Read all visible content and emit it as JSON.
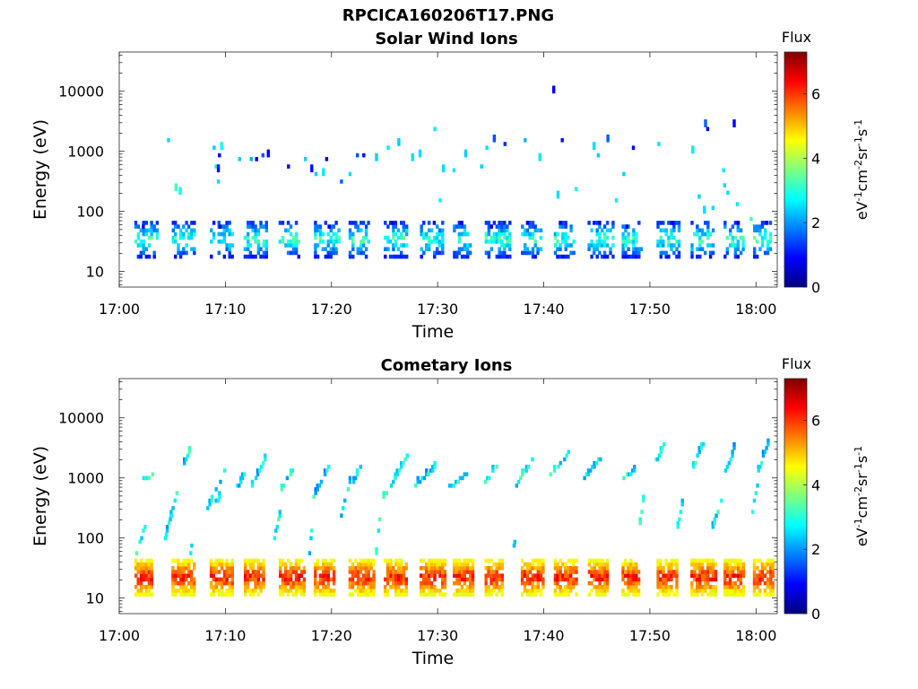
{
  "figure_title": "RPCICA160206T17.PNG",
  "colors": {
    "colormap": [
      "#00007f",
      "#0000ff",
      "#007fff",
      "#00ffff",
      "#7fff7f",
      "#ffff00",
      "#ff7f00",
      "#ff0000",
      "#7f0000"
    ]
  },
  "chart_data": [
    {
      "type": "heatmap",
      "title": "Solar Wind Ions",
      "xlabel": "Time",
      "ylabel": "Energy (eV)",
      "x_ticks": [
        "17:00",
        "17:10",
        "17:20",
        "17:30",
        "17:40",
        "17:50",
        "18:00"
      ],
      "x_range_minutes": [
        0,
        62
      ],
      "y_scale": "log",
      "y_range": [
        5.5,
        45000
      ],
      "y_ticks": [
        "10",
        "100",
        "1000",
        "10000"
      ],
      "y_tick_values": [
        10,
        100,
        1000,
        10000
      ],
      "colorbar": {
        "title": "Flux",
        "label": "eV-1cm-2sr-1s-1",
        "range": [
          0,
          7.3
        ],
        "ticks": [
          "0",
          "2",
          "4",
          "6"
        ],
        "tick_values": [
          0,
          2,
          4,
          6
        ]
      },
      "pulses_minutes": [
        2.3,
        5.8,
        9.4,
        12.6,
        15.9,
        19.2,
        22.5,
        25.8,
        29.2,
        32.3,
        35.3,
        38.7,
        41.8,
        45.0,
        48.2,
        51.5,
        54.7,
        57.8,
        60.6
      ],
      "low_band": {
        "energy_range": [
          17,
          65
        ],
        "flux_range": [
          0.4,
          3.8
        ]
      },
      "high_points": [
        [
          4.5,
          1450,
          2.5
        ],
        [
          5.2,
          250,
          3.2
        ],
        [
          5.6,
          200,
          2.8
        ],
        [
          8.8,
          1200,
          2.4
        ],
        [
          9.0,
          600,
          2.6
        ],
        [
          9.2,
          500,
          1.0
        ],
        [
          9.3,
          900,
          0.8
        ],
        [
          9.5,
          1150,
          2.8
        ],
        [
          9.2,
          300,
          2.5
        ],
        [
          11.2,
          750,
          2.4
        ],
        [
          12.3,
          800,
          2.2
        ],
        [
          12.8,
          700,
          0.8
        ],
        [
          13.4,
          850,
          1.5
        ],
        [
          13.9,
          900,
          0.9
        ],
        [
          15.8,
          600,
          0.9
        ],
        [
          17.4,
          800,
          2.4
        ],
        [
          18.0,
          500,
          1.0
        ],
        [
          18.4,
          400,
          2.4
        ],
        [
          19.1,
          400,
          2.6
        ],
        [
          19.4,
          700,
          0.8
        ],
        [
          20.8,
          300,
          1.6
        ],
        [
          21.6,
          450,
          2.5
        ],
        [
          22.3,
          900,
          1.5
        ],
        [
          22.9,
          850,
          1.0
        ],
        [
          24.1,
          800,
          2.4
        ],
        [
          25.2,
          1100,
          2.6
        ],
        [
          26.2,
          1400,
          2.4
        ],
        [
          27.5,
          750,
          2.5
        ],
        [
          28.2,
          900,
          2.5
        ],
        [
          29.6,
          2400,
          2.6
        ],
        [
          30.1,
          150,
          2.7
        ],
        [
          30.4,
          500,
          2.5
        ],
        [
          31.4,
          500,
          2.6
        ],
        [
          32.5,
          850,
          2.4
        ],
        [
          34.0,
          600,
          2.4
        ],
        [
          34.5,
          1200,
          2.5
        ],
        [
          35.2,
          1500,
          1.5
        ],
        [
          36.2,
          1300,
          1.2
        ],
        [
          38.1,
          1500,
          2.2
        ],
        [
          39.5,
          800,
          2.6
        ],
        [
          40.8,
          9500,
          0.8
        ],
        [
          41.6,
          1500,
          1.0
        ],
        [
          42.9,
          230,
          2.8
        ],
        [
          44.6,
          1200,
          2.5
        ],
        [
          45.9,
          1450,
          1.6
        ],
        [
          45.0,
          900,
          2.4
        ],
        [
          47.4,
          450,
          2.4
        ],
        [
          48.3,
          1200,
          0.9
        ],
        [
          50.7,
          1400,
          2.5
        ],
        [
          53.9,
          950,
          2.6
        ],
        [
          55.1,
          2600,
          1.6
        ],
        [
          55.3,
          2400,
          0.8
        ],
        [
          56.8,
          500,
          2.6
        ],
        [
          57.2,
          200,
          2.5
        ],
        [
          57.8,
          2900,
          0.9
        ],
        [
          54.5,
          170,
          2.4
        ],
        [
          55.8,
          120,
          2.5
        ],
        [
          56.9,
          270,
          2.5
        ],
        [
          58.1,
          130,
          2.6
        ],
        [
          59.4,
          75,
          3.2
        ],
        [
          55.0,
          100,
          2.5
        ],
        [
          41.2,
          170,
          2.5
        ],
        [
          46.7,
          150,
          2.6
        ]
      ]
    },
    {
      "type": "heatmap",
      "title": "Cometary Ions",
      "xlabel": "Time",
      "ylabel": "Energy (eV)",
      "x_ticks": [
        "17:00",
        "17:10",
        "17:20",
        "17:30",
        "17:40",
        "17:50",
        "18:00"
      ],
      "x_range_minutes": [
        0,
        62
      ],
      "y_scale": "log",
      "y_range": [
        5.5,
        45000
      ],
      "y_ticks": [
        "10",
        "100",
        "1000",
        "10000"
      ],
      "y_tick_values": [
        10,
        100,
        1000,
        10000
      ],
      "colorbar": {
        "title": "Flux",
        "label": "eV-1cm-2sr-1s-1",
        "range": [
          0,
          7.3
        ],
        "ticks": [
          "0",
          "2",
          "4",
          "6"
        ],
        "tick_values": [
          0,
          2,
          4,
          6
        ]
      },
      "pulses_minutes": [
        2.3,
        5.8,
        9.4,
        12.6,
        15.9,
        19.2,
        22.5,
        25.8,
        29.2,
        32.3,
        35.3,
        38.7,
        41.8,
        45.0,
        48.2,
        51.5,
        54.7,
        57.8,
        60.6
      ],
      "low_band": {
        "energy_range": [
          12,
          45
        ],
        "flux_range": [
          3.8,
          6.8
        ]
      },
      "streaks": [
        [
          1.5,
          60,
          2.3,
          150
        ],
        [
          2.0,
          900,
          3.0,
          1100
        ],
        [
          4.2,
          100,
          5.3,
          600
        ],
        [
          6.0,
          1700,
          6.8,
          3800
        ],
        [
          8.2,
          300,
          10.0,
          1500
        ],
        [
          9.0,
          400,
          9.4,
          500
        ],
        [
          11.0,
          700,
          11.8,
          1400
        ],
        [
          12.4,
          800,
          13.6,
          2000
        ],
        [
          15.0,
          600,
          16.2,
          1400
        ],
        [
          18.2,
          500,
          19.6,
          1500
        ],
        [
          20.8,
          250,
          21.6,
          900
        ],
        [
          21.8,
          700,
          22.6,
          1500
        ],
        [
          24.5,
          400,
          25.2,
          600
        ],
        [
          25.5,
          800,
          27.0,
          2500
        ],
        [
          27.8,
          800,
          29.6,
          1500
        ],
        [
          31.0,
          700,
          32.6,
          1200
        ],
        [
          34.2,
          800,
          35.6,
          1700
        ],
        [
          37.3,
          800,
          38.8,
          2000
        ],
        [
          40.5,
          1100,
          42.2,
          2600
        ],
        [
          43.7,
          1000,
          45.2,
          2200
        ],
        [
          47.4,
          1000,
          48.4,
          1300
        ],
        [
          50.3,
          1700,
          51.2,
          3500
        ],
        [
          53.8,
          1400,
          54.9,
          3500
        ],
        [
          57.0,
          1300,
          57.8,
          3000
        ],
        [
          60.1,
          1300,
          61.0,
          3800
        ],
        [
          4.3,
          120,
          4.8,
          250
        ],
        [
          14.5,
          100,
          15.0,
          250
        ],
        [
          24.1,
          60,
          24.4,
          200
        ],
        [
          48.8,
          120,
          49.4,
          600
        ],
        [
          52.5,
          150,
          53.2,
          700
        ],
        [
          55.8,
          150,
          56.6,
          400
        ],
        [
          59.4,
          200,
          60.0,
          800
        ],
        [
          6.6,
          60,
          6.9,
          120
        ],
        [
          37.0,
          60,
          37.2,
          100
        ],
        [
          17.8,
          60,
          18.0,
          140
        ]
      ]
    }
  ]
}
